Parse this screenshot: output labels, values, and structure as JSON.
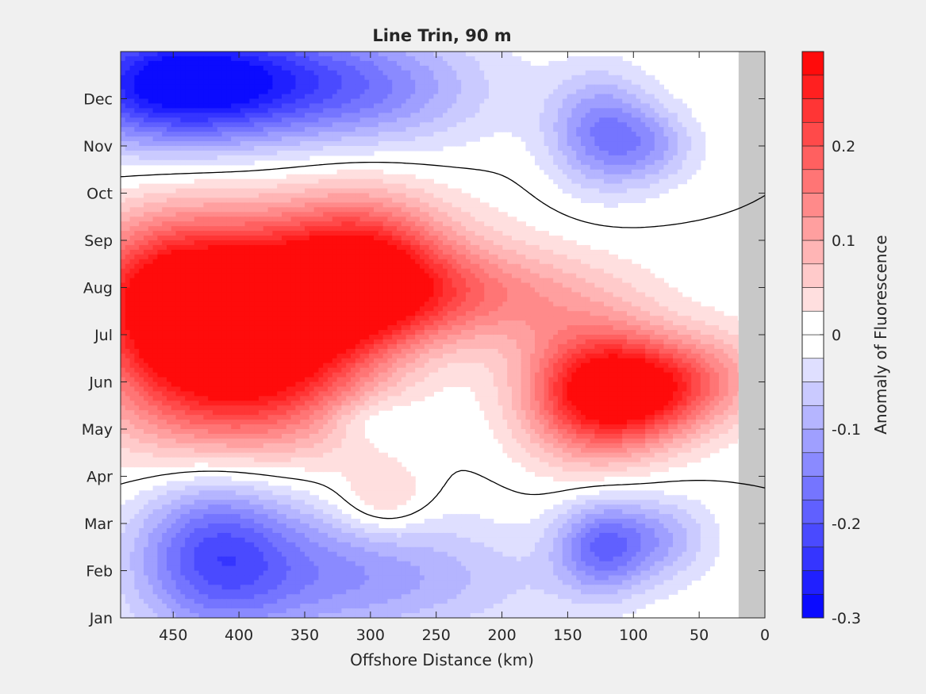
{
  "chart_data": {
    "type": "heatmap",
    "subtype": "filled-contour",
    "title": "Line Trin, 90 m",
    "xlabel": "Offshore Distance (km)",
    "x_direction": "reversed",
    "xlim": [
      0,
      490
    ],
    "xticks": [
      450,
      400,
      350,
      300,
      250,
      200,
      150,
      100,
      50,
      0
    ],
    "yticks": [
      "Jan",
      "Feb",
      "Mar",
      "Apr",
      "May",
      "Jun",
      "Jul",
      "Aug",
      "Sep",
      "Oct",
      "Nov",
      "Dec"
    ],
    "colorbar": {
      "label": "Anomaly of Fluorescence",
      "range": [
        -0.3,
        0.3
      ],
      "step": 0.025,
      "ticks": [
        {
          "value": -0.3,
          "label": "-0.3"
        },
        {
          "value": -0.2,
          "label": "-0.2"
        },
        {
          "value": -0.1,
          "label": "-0.1"
        },
        {
          "value": 0,
          "label": "0"
        },
        {
          "value": 0.1,
          "label": "0.1"
        },
        {
          "value": 0.2,
          "label": "0.2"
        }
      ]
    },
    "no_data_region_km": [
      0,
      20
    ],
    "no_data_color": "#c8c8c8",
    "zero_contour_color": "#000000",
    "features": [
      {
        "x": 425,
        "month": 5.7,
        "value": 0.25,
        "radius_km": 80,
        "radius_months": 2.3
      },
      {
        "x": 460,
        "month": 6.7,
        "value": 0.15,
        "radius_km": 60,
        "radius_months": 1.6
      },
      {
        "x": 360,
        "month": 5.7,
        "value": 0.18,
        "radius_km": 70,
        "radius_months": 1.8
      },
      {
        "x": 305,
        "month": 7.3,
        "value": 0.19,
        "radius_km": 60,
        "radius_months": 1.6
      },
      {
        "x": 350,
        "month": 7.4,
        "value": 0.13,
        "radius_km": 130,
        "radius_months": 1.4
      },
      {
        "x": 230,
        "month": 6.8,
        "value": 0.12,
        "radius_km": 110,
        "radius_months": 1.0
      },
      {
        "x": 130,
        "month": 4.8,
        "value": 0.26,
        "radius_km": 55,
        "radius_months": 1.4
      },
      {
        "x": 85,
        "month": 4.8,
        "value": 0.17,
        "radius_km": 55,
        "radius_months": 1.0
      },
      {
        "x": 40,
        "month": 5.2,
        "value": 0.07,
        "radius_km": 60,
        "radius_months": 1.0
      },
      {
        "x": 290,
        "month": 2.5,
        "value": 0.07,
        "radius_km": 35,
        "radius_months": 0.8
      },
      {
        "x": 300,
        "month": 4.2,
        "value": -0.04,
        "radius_km": 35,
        "radius_months": 0.5
      },
      {
        "x": 450,
        "month": 11.3,
        "value": -0.26,
        "radius_km": 90,
        "radius_months": 1.3
      },
      {
        "x": 360,
        "month": 11.5,
        "value": -0.12,
        "radius_km": 120,
        "radius_months": 1.2
      },
      {
        "x": 300,
        "month": 11.0,
        "value": -0.07,
        "radius_km": 90,
        "radius_months": 1.2
      },
      {
        "x": 125,
        "month": 10.3,
        "value": -0.14,
        "radius_km": 40,
        "radius_months": 1.2
      },
      {
        "x": 85,
        "month": 10.0,
        "value": -0.08,
        "radius_km": 35,
        "radius_months": 0.8
      },
      {
        "x": 420,
        "month": 1.5,
        "value": -0.16,
        "radius_km": 60,
        "radius_months": 1.8
      },
      {
        "x": 350,
        "month": 1.0,
        "value": -0.1,
        "radius_km": 110,
        "radius_months": 1.5
      },
      {
        "x": 125,
        "month": 1.5,
        "value": -0.15,
        "radius_km": 35,
        "radius_months": 1.0
      },
      {
        "x": 80,
        "month": 1.7,
        "value": -0.09,
        "radius_km": 40,
        "radius_months": 0.9
      },
      {
        "x": 250,
        "month": 0.8,
        "value": -0.05,
        "radius_km": 120,
        "radius_months": 1.2
      }
    ]
  }
}
